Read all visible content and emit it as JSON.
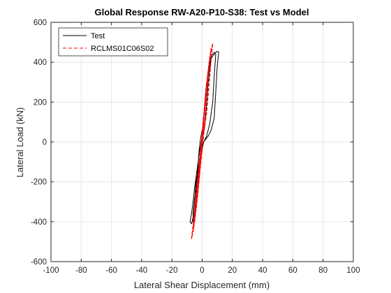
{
  "chart_data": {
    "type": "line",
    "title": "Global Response RW-A20-P10-S38: Test vs Model",
    "xlabel": "Lateral Shear Displacement (mm)",
    "ylabel": "Lateral Load (kN)",
    "xlim": [
      -100,
      100
    ],
    "ylim": [
      -600,
      600
    ],
    "xticks": [
      -100,
      -80,
      -60,
      -40,
      -20,
      0,
      20,
      40,
      60,
      80,
      100
    ],
    "yticks": [
      -600,
      -400,
      -200,
      0,
      200,
      400,
      600
    ],
    "xtick_labels": [
      "-100",
      "-80",
      "-60",
      "-40",
      "-20",
      "0",
      "20",
      "40",
      "60",
      "80",
      "100"
    ],
    "ytick_labels": [
      "-600",
      "-400",
      "-200",
      "0",
      "200",
      "400",
      "600"
    ],
    "grid": true,
    "legend_position": "top-left",
    "series": [
      {
        "name": "Test",
        "color": "#000000",
        "style": "solid",
        "x": [
          0,
          2,
          3,
          4,
          5,
          6,
          8,
          10,
          11,
          10,
          9,
          8,
          6,
          4,
          2,
          1,
          -1,
          -2,
          -4,
          -5,
          -6,
          -7,
          -8,
          -7,
          -6,
          -5,
          -3,
          -2,
          -1,
          0,
          1,
          2,
          3,
          4,
          5,
          6,
          8,
          9,
          8,
          7,
          5,
          3,
          1,
          0,
          -2,
          -3,
          -5,
          -6,
          -6,
          -5,
          -4,
          -3,
          -2,
          -1,
          0
        ],
        "y": [
          0,
          100,
          200,
          300,
          360,
          420,
          440,
          455,
          450,
          380,
          250,
          120,
          60,
          30,
          10,
          0,
          -60,
          -110,
          -200,
          -290,
          -380,
          -410,
          -400,
          -360,
          -300,
          -230,
          -120,
          -60,
          -20,
          30,
          120,
          200,
          280,
          340,
          390,
          430,
          450,
          440,
          330,
          200,
          90,
          30,
          0,
          -40,
          -120,
          -180,
          -280,
          -360,
          -400,
          -360,
          -260,
          -140,
          -40,
          20,
          60
        ]
      },
      {
        "name": "RCLMS01C06S02",
        "color": "#ff0000",
        "style": "dashed",
        "x": [
          -1,
          0,
          1,
          2,
          3,
          4,
          5,
          6,
          7,
          6,
          5,
          4,
          3,
          1,
          0,
          -1,
          -2,
          -3,
          -4,
          -5,
          -6,
          -7,
          -6,
          -5,
          -4,
          -3,
          -2,
          0,
          1,
          2,
          3,
          4,
          5,
          6,
          4,
          3,
          2,
          1,
          0,
          -1,
          -2,
          -3,
          -4,
          -5,
          -6,
          -4,
          -3,
          -1,
          0,
          1,
          2,
          3,
          4,
          5,
          3,
          2,
          1,
          -1,
          -2,
          -3,
          -4,
          -5,
          -4,
          -2,
          -1,
          0,
          2,
          3,
          4,
          2,
          1,
          0,
          -1,
          -2,
          -3,
          -4,
          -3,
          -2,
          0,
          1,
          2,
          3,
          1,
          0,
          -1,
          -2,
          -3,
          -2,
          0
        ],
        "y": [
          -60,
          0,
          100,
          200,
          280,
          350,
          410,
          460,
          495,
          420,
          330,
          240,
          150,
          40,
          -40,
          -110,
          -190,
          -270,
          -340,
          -400,
          -450,
          -485,
          -420,
          -340,
          -260,
          -180,
          -100,
          20,
          110,
          200,
          290,
          360,
          420,
          470,
          360,
          270,
          180,
          90,
          0,
          -90,
          -180,
          -260,
          -330,
          -390,
          -440,
          -330,
          -240,
          -110,
          -20,
          80,
          170,
          260,
          340,
          410,
          290,
          200,
          100,
          -80,
          -170,
          -250,
          -320,
          -380,
          -290,
          -150,
          -60,
          40,
          200,
          290,
          360,
          210,
          110,
          10,
          -80,
          -160,
          -240,
          -300,
          -220,
          -130,
          20,
          120,
          220,
          300,
          130,
          40,
          -60,
          -150,
          -230,
          -120,
          -20
        ]
      }
    ]
  }
}
